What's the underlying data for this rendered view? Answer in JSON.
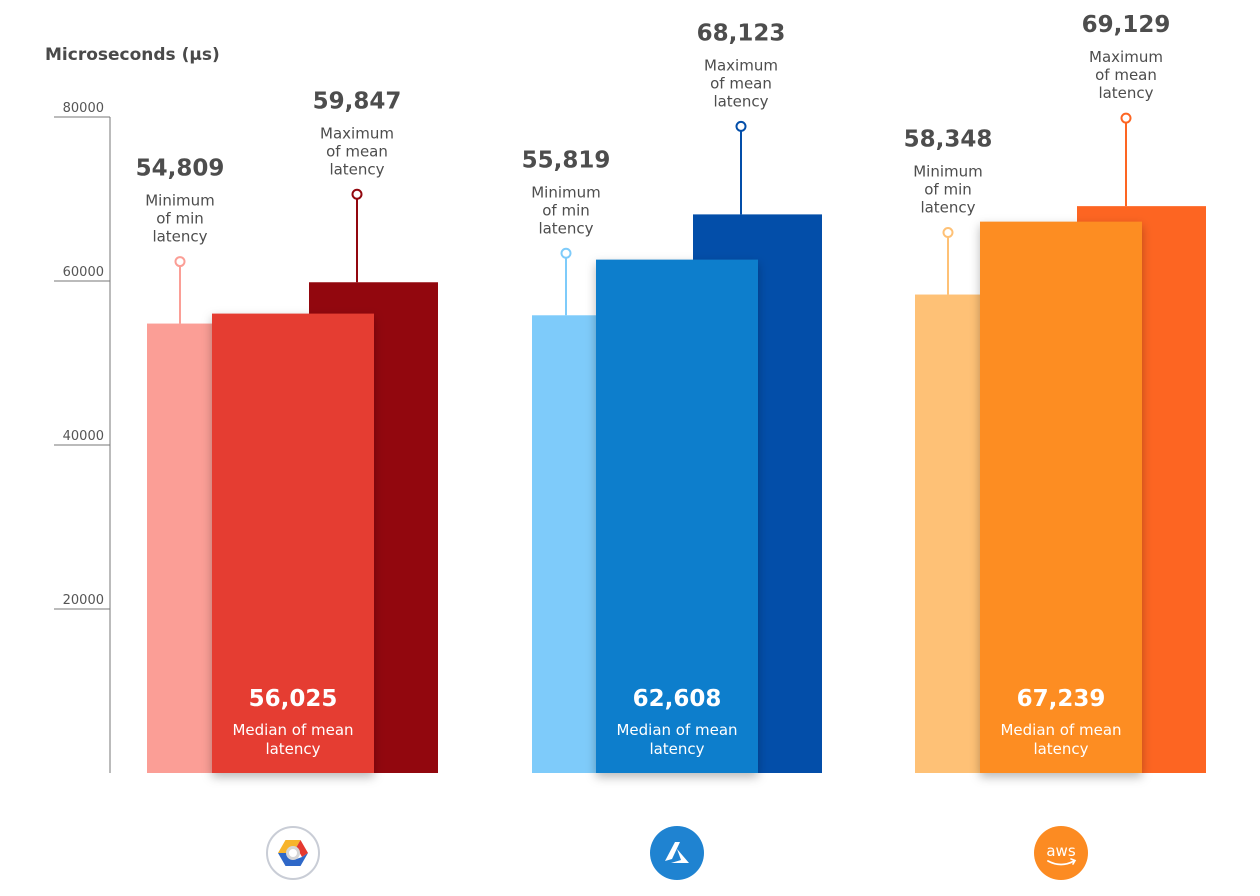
{
  "chart_data": {
    "type": "bar",
    "title": "",
    "ylabel": "Microseconds (µs)",
    "xlabel": "",
    "ylim": [
      0,
      80000
    ],
    "yticks": [
      20000,
      40000,
      60000,
      80000
    ],
    "tick_labels": [
      "20000",
      "40000",
      "60000",
      "80000"
    ],
    "grid": false,
    "legend": "none",
    "series_labels": {
      "min": "Minimum of min latency",
      "median": "Median of mean latency",
      "max": "Maximum of mean latency"
    },
    "categories": [
      "Google Cloud",
      "Azure",
      "AWS"
    ],
    "groups": [
      {
        "provider": "Google Cloud",
        "logo": "google-cloud-icon",
        "min": {
          "value": 54809,
          "label": "54,809",
          "desc": [
            "Minimum",
            "of min",
            "latency"
          ]
        },
        "median": {
          "value": 56025,
          "label": "56,025",
          "desc": [
            "Median of mean",
            "latency"
          ]
        },
        "max": {
          "value": 59847,
          "label": "59,847",
          "desc": [
            "Maximum",
            "of mean",
            "latency"
          ]
        },
        "colors": {
          "min": "#fb9e96",
          "median": "#e53c32",
          "max": "#92070e"
        }
      },
      {
        "provider": "Azure",
        "logo": "azure-icon",
        "min": {
          "value": 55819,
          "label": "55,819",
          "desc": [
            "Minimum",
            "of min",
            "latency"
          ]
        },
        "median": {
          "value": 62608,
          "label": "62,608",
          "desc": [
            "Median of mean",
            "latency"
          ]
        },
        "max": {
          "value": 68123,
          "label": "68,123",
          "desc": [
            "Maximum",
            "of mean",
            "latency"
          ]
        },
        "colors": {
          "min": "#7ecbfa",
          "median": "#0b7ecc",
          "max": "#034ea9"
        }
      },
      {
        "provider": "AWS",
        "logo": "aws-icon",
        "min": {
          "value": 58348,
          "label": "58,348",
          "desc": [
            "Minimum",
            "of min",
            "latency"
          ]
        },
        "median": {
          "value": 67239,
          "label": "67,239",
          "desc": [
            "Median of mean",
            "latency"
          ]
        },
        "max": {
          "value": 69129,
          "label": "69,129",
          "desc": [
            "Maximum",
            "of mean",
            "latency"
          ]
        },
        "colors": {
          "min": "#fec176",
          "median": "#fd8d24",
          "max": "#fd6522"
        }
      }
    ]
  },
  "logos": {
    "aws_text": "aws"
  },
  "colors": {
    "text": "#4a4a4a",
    "axis": "#777777",
    "google_logo": {
      "yellow": "#f7b42c",
      "red": "#e5392f",
      "blue": "#2f68c8",
      "ring": "#c9cdd6"
    },
    "azure_logo": "#1f83d1",
    "aws_logo": "#fc8b22"
  }
}
